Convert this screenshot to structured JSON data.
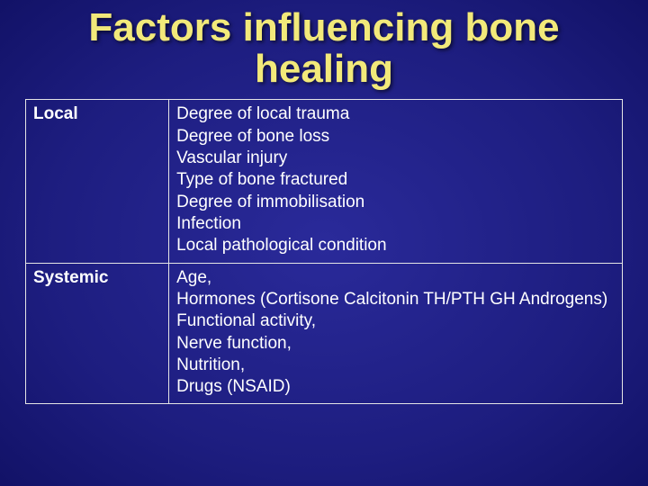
{
  "title": "Factors influencing bone healing",
  "rows": [
    {
      "category": "Local",
      "items": [
        "Degree of local trauma",
        "Degree of bone loss",
        "Vascular injury",
        "Type of bone fractured",
        "Degree of immobilisation",
        "Infection",
        "Local pathological condition"
      ]
    },
    {
      "category": "Systemic",
      "items": [
        "Age,",
        " Hormones (Cortisone Calcitonin TH/PTH GH Androgens)",
        "Functional activity,",
        " Nerve function,",
        " Nutrition,",
        " Drugs (NSAID)"
      ]
    }
  ],
  "style": {
    "slide_width": 720,
    "slide_height": 540,
    "title_color": "#f2e97a",
    "title_fontsize": 44,
    "body_color": "#ffffff",
    "body_fontsize": 19,
    "border_color": "#e5e5e5",
    "background_gradient": [
      "#2a2a9a",
      "#1d1d7f",
      "#0a0a56",
      "#040438"
    ],
    "col_widths_pct": [
      24,
      76
    ]
  }
}
